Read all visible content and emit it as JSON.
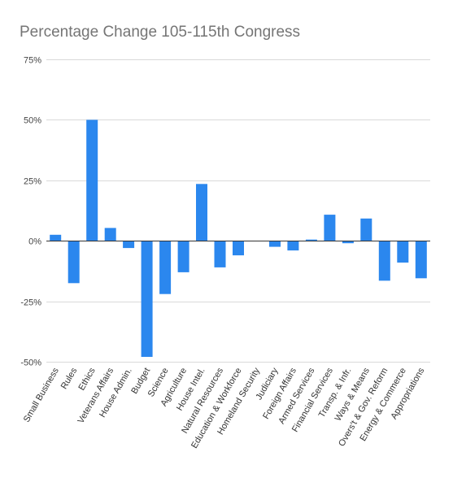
{
  "chart_data": {
    "type": "bar",
    "title": "Percentage Change 105-115th Congress",
    "xlabel": "",
    "ylabel": "",
    "ylim": [
      -50,
      75
    ],
    "yticks": [
      -50,
      -25,
      0,
      25,
      50,
      75
    ],
    "ytick_labels": [
      "-50%",
      "-25%",
      "0%",
      "25%",
      "50%",
      "75%"
    ],
    "grid": true,
    "legend": "none",
    "bar_color": "#2b87ee",
    "categories": [
      "Small Business",
      "Rules",
      "Ethics",
      "Veterans Affairs",
      "House Admin.",
      "Budget",
      "Science",
      "Agriculture",
      "House Intel.",
      "Natural Resources",
      "Education & Workforce",
      "Homeland Security",
      "Judiciary",
      "Foreign Affairs",
      "Armed Services",
      "Financial Services",
      "Transp. & Infr.",
      "Ways & Means",
      "Overs't & Gov. Reform",
      "Energy & Commerce",
      "Appropriations"
    ],
    "values": [
      2.5,
      -17.5,
      50,
      5.3,
      -3,
      -48,
      -22,
      -13,
      23.5,
      -11,
      -6,
      0,
      -2.5,
      -4,
      0.5,
      10.8,
      -1,
      9.2,
      -16.5,
      -9,
      -15.5
    ]
  }
}
